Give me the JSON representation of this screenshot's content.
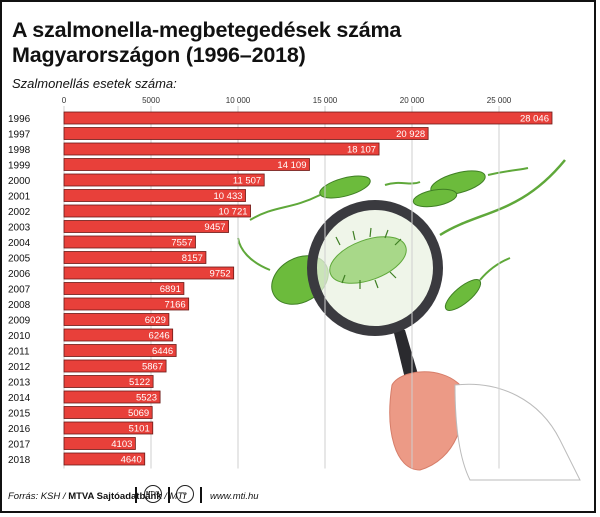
{
  "title": "A szalmonella-megbetegedések száma Magyarországon (1996–2018)",
  "subtitle": "Szalmonellás esetek száma:",
  "footer": {
    "source_prefix": "Forrás: KSH / ",
    "source_bold": "MTVA Sajtóadatbank",
    "source_suffix": " / MTI",
    "logo_1": "MTVA",
    "url": "www.mti.hu"
  },
  "colors": {
    "bar_fill": "#e8403a",
    "bar_stroke": "#6b1a17",
    "bacteria_green": "#6cbb3c",
    "magnifier": "#3a3a3f",
    "hand": "#ec9a86"
  },
  "chart_data": {
    "type": "bar",
    "orientation": "horizontal",
    "categories": [
      "1996",
      "1997",
      "1998",
      "1999",
      "2000",
      "2001",
      "2002",
      "2003",
      "2004",
      "2005",
      "2006",
      "2007",
      "2008",
      "2009",
      "2010",
      "2011",
      "2012",
      "2013",
      "2014",
      "2015",
      "2016",
      "2017",
      "2018"
    ],
    "values": [
      28046,
      20928,
      18107,
      14109,
      11507,
      10433,
      10721,
      9457,
      7557,
      8157,
      9752,
      6891,
      7166,
      6029,
      6246,
      6446,
      5867,
      5122,
      5523,
      5069,
      5101,
      4103,
      4640
    ],
    "value_labels": [
      "28 046",
      "20 928",
      "18 107",
      "14 109",
      "11 507",
      "10 433",
      "10 721",
      "9457",
      "7557",
      "8157",
      "9752",
      "6891",
      "7166",
      "6029",
      "6246",
      "6446",
      "5867",
      "5122",
      "5523",
      "5069",
      "5101",
      "4103",
      "4640"
    ],
    "x_ticks": [
      0,
      5000,
      10000,
      15000,
      20000,
      25000
    ],
    "x_tick_labels": [
      "0",
      "5000",
      "10 000",
      "15 000",
      "20 000",
      "25 000"
    ],
    "xlim": [
      0,
      28200
    ],
    "grid": true,
    "title": "A szalmonella-megbetegedések száma Magyarországon (1996–2018)",
    "xlabel": "Szalmonellás esetek száma:",
    "ylabel": ""
  }
}
